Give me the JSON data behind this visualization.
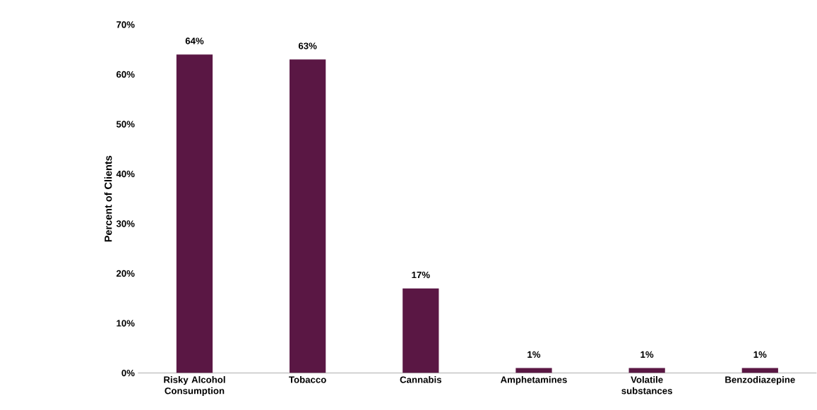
{
  "chart_data": {
    "type": "bar",
    "ylabel": "Percent of Clients",
    "categories": [
      "Risky  Alcohol Consumption",
      "Tobacco",
      "Cannabis",
      "Amphetamines",
      "Volatile substances",
      "Benzodiazepine"
    ],
    "values": [
      64,
      63,
      17,
      1,
      1,
      1
    ],
    "value_labels": [
      "64%",
      "63%",
      "17%",
      "1%",
      "1%",
      "1%"
    ],
    "color": "#5a1744",
    "ylim": [
      0,
      70
    ],
    "yticks": [
      {
        "value": 0,
        "label": "0%"
      },
      {
        "value": 10,
        "label": "10%"
      },
      {
        "value": 20,
        "label": "20%"
      },
      {
        "value": 30,
        "label": "30%"
      },
      {
        "value": 40,
        "label": "40%"
      },
      {
        "value": 50,
        "label": "50%"
      },
      {
        "value": 60,
        "label": "60%"
      },
      {
        "value": 70,
        "label": "70%"
      }
    ]
  }
}
